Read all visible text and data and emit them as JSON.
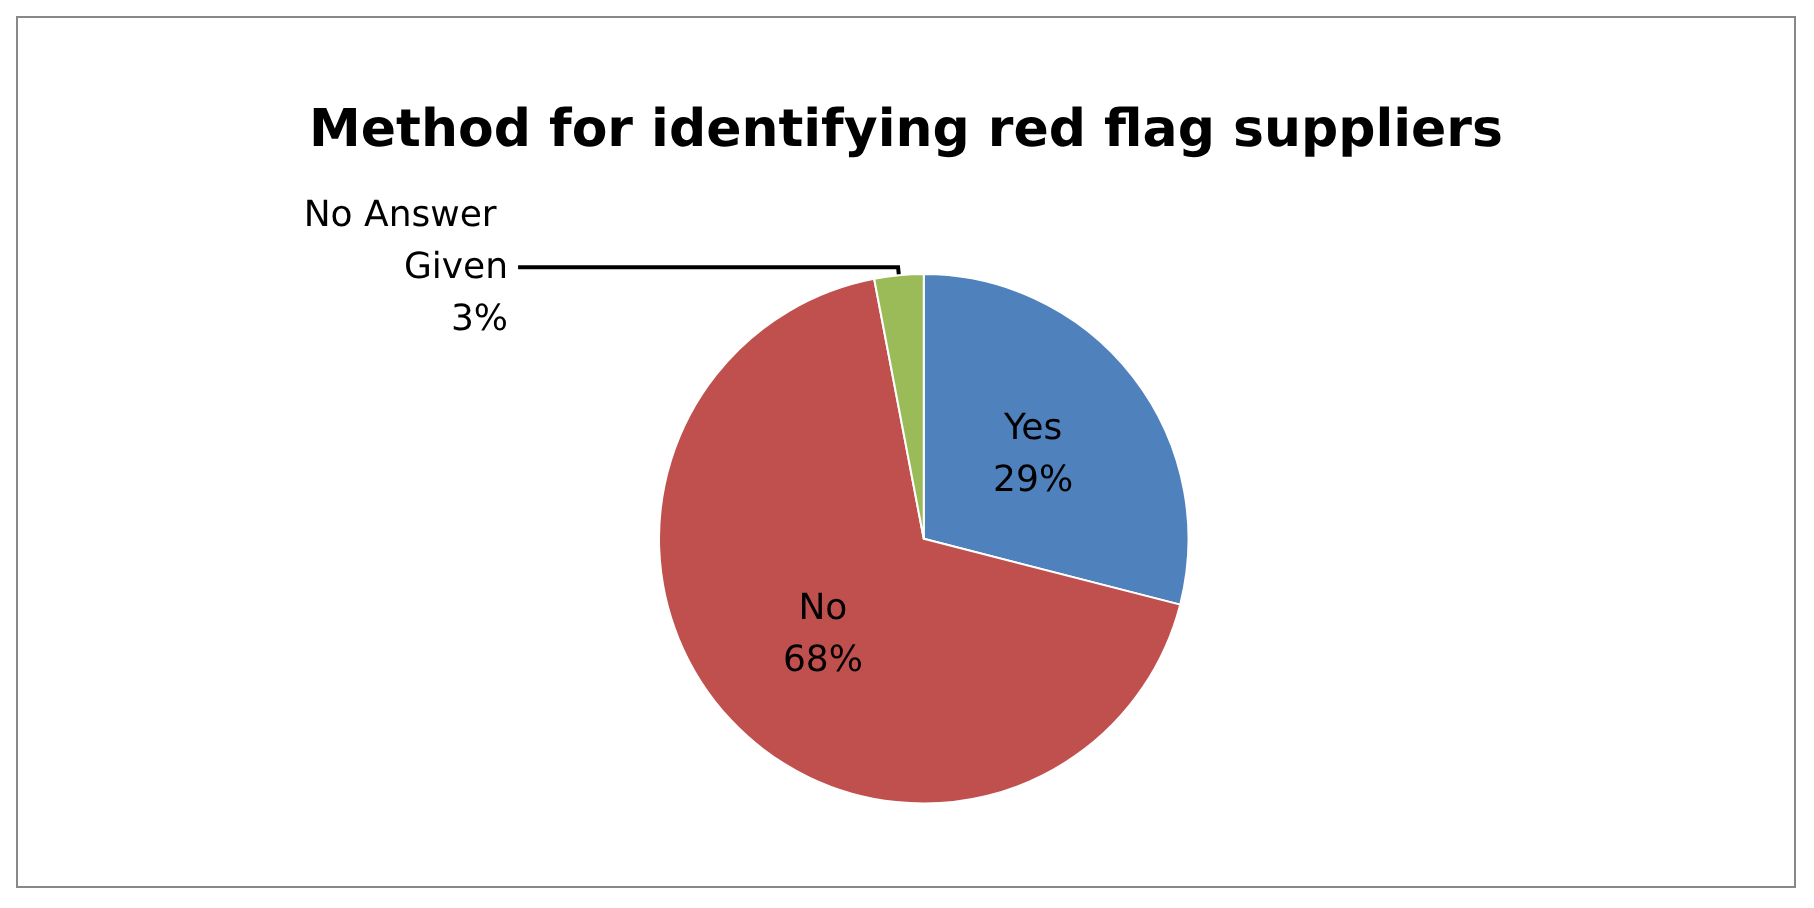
{
  "chart_data": {
    "type": "pie",
    "title": "Method for identifying red flag suppliers",
    "categories": [
      "Yes",
      "No",
      "No Answer Given"
    ],
    "values": [
      29,
      68,
      3
    ],
    "value_labels": [
      "29%",
      "68%",
      "3%"
    ],
    "colors": [
      "#4f81bd",
      "#c0504d",
      "#9bbb59"
    ],
    "legend": false
  }
}
